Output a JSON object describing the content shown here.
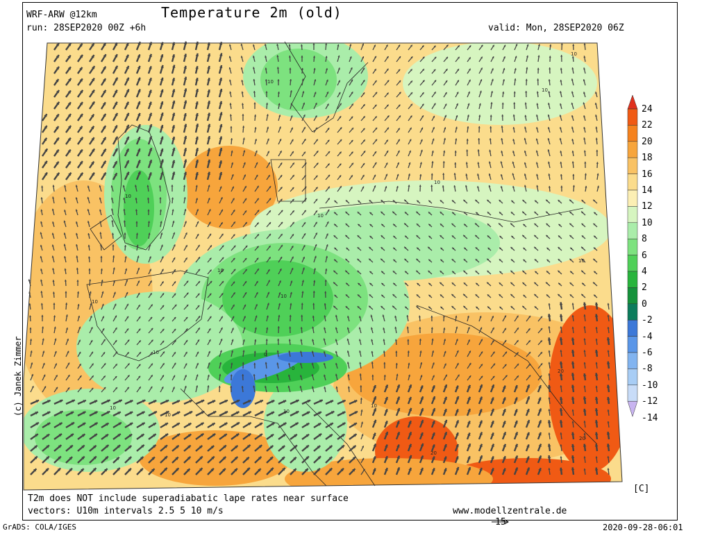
{
  "header": {
    "model": "WRF-ARW @12km",
    "title": "Temperature 2m (old)",
    "run": "run: 28SEP2020 00Z +6h",
    "valid": "valid: Mon, 28SEP2020 06Z"
  },
  "footer": {
    "note_line1": "T2m does NOT include superadiabatic lape rates near surface",
    "note_line2": "vectors: U10m intervals 2.5 5 10 m/s",
    "website": "www.modellzentrale.de",
    "software": "GrADS: COLA/IGES",
    "timestamp": "2020-09-28-06:01",
    "vector_reference": "15"
  },
  "credit": "(c) Janek Zimmer",
  "legend": {
    "unit": "[C]",
    "labels": [
      "24",
      "22",
      "20",
      "18",
      "16",
      "14",
      "12",
      "10",
      "8",
      "6",
      "4",
      "2",
      "0",
      "-2",
      "-4",
      "-6",
      "-8",
      "-10",
      "-12",
      "-14"
    ],
    "colors": [
      "#e0301e",
      "#f05a14",
      "#f5821e",
      "#f7a53c",
      "#f9c264",
      "#fbdc8c",
      "#fcefb4",
      "#d6f5c0",
      "#aaedaa",
      "#7de27f",
      "#4fd058",
      "#28b43c",
      "#15923b",
      "#0c7c5c",
      "#3c78d8",
      "#5a96e8",
      "#82b4f0",
      "#a8cdf5",
      "#c8dcf8",
      "#c8b4f0"
    ]
  },
  "map": {
    "contour_labels": [
      "10",
      "10",
      "10",
      "10",
      "10",
      "10",
      "10",
      "10",
      "10",
      "10",
      "10",
      "10",
      "10",
      "10",
      "20",
      "20",
      "20",
      "10",
      "0",
      "0"
    ]
  }
}
